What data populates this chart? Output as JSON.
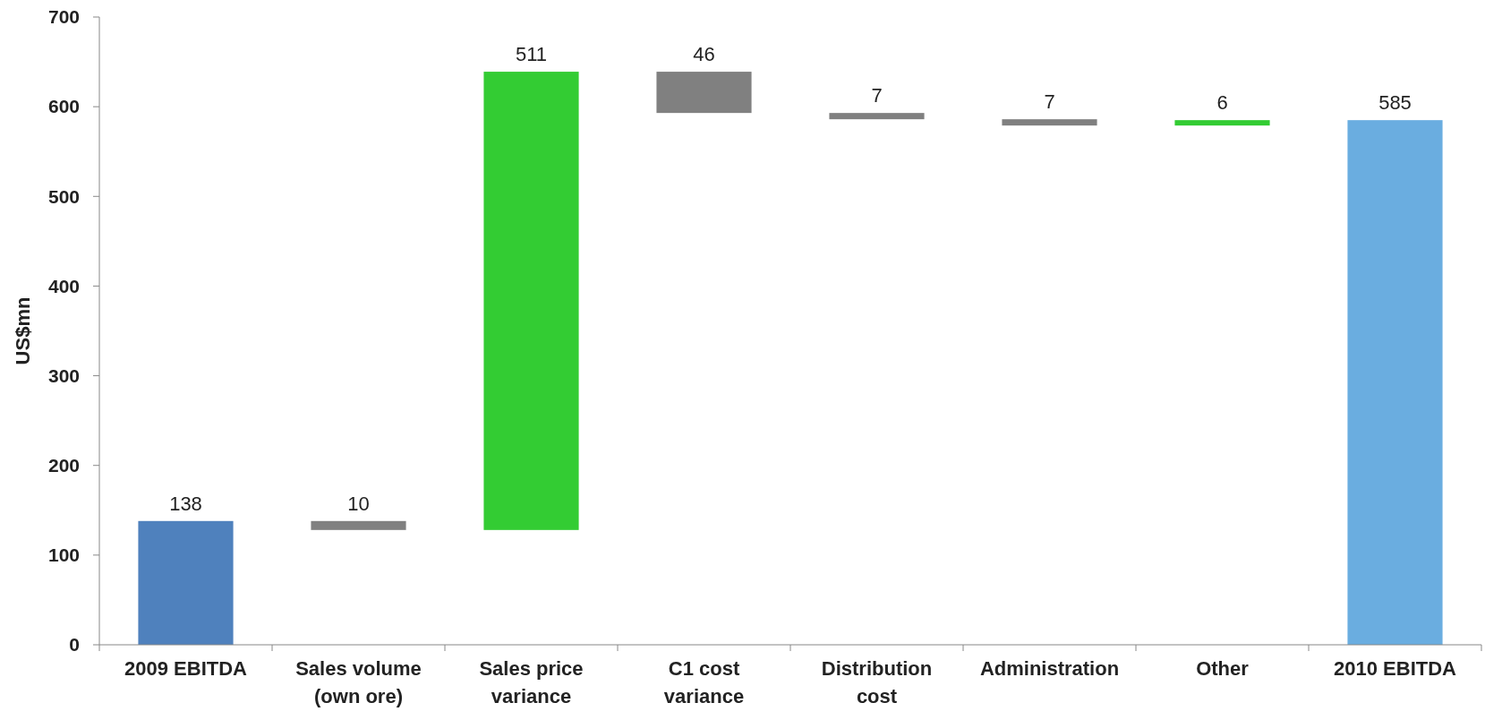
{
  "chart_data": {
    "type": "bar",
    "ylabel": "US$mn",
    "categories": [
      "2009 EBITDA",
      "Sales volume (own ore)",
      "Sales price variance",
      "C1 cost variance",
      "Distribution cost",
      "Administration",
      "Other",
      "2010 EBITDA"
    ],
    "values": [
      138,
      -10,
      511,
      -46,
      -7,
      -7,
      6,
      585
    ],
    "base": [
      0,
      138,
      128,
      639,
      593,
      586,
      579,
      0
    ],
    "colors": [
      "#4f81bd",
      "#808080",
      "#33cc33",
      "#808080",
      "#808080",
      "#808080",
      "#33cc33",
      "#6aade0"
    ],
    "value_labels": [
      "138",
      "10",
      "511",
      "46",
      "7",
      "7",
      "6",
      "585"
    ],
    "ylim": [
      0,
      700
    ],
    "yticks": [
      0,
      100,
      200,
      300,
      400,
      500,
      600,
      700
    ],
    "grid": false
  }
}
